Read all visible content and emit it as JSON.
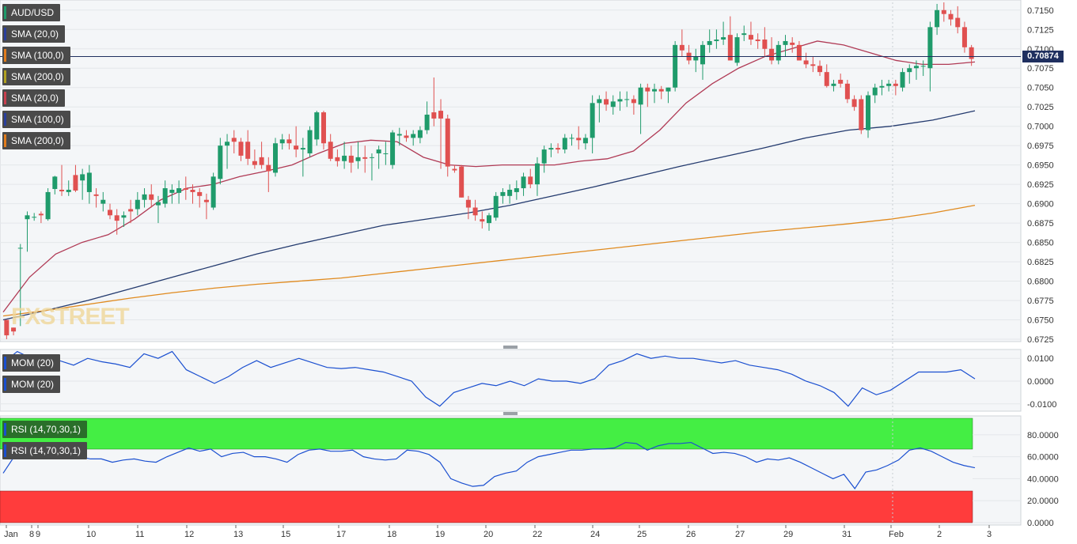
{
  "symbol": "AUD/USD",
  "last_price": "0.70874",
  "watermark": "FXSTREET",
  "overlay_labels": [
    "SMA (20,0)",
    "SMA (100,0)",
    "SMA (200,0)",
    "SMA (20,0)",
    "SMA (100,0)",
    "SMA (200,0)"
  ],
  "overlay_colors": [
    "#2a3f9c",
    "#e07b1c",
    "#b0a020",
    "#c8404f",
    "#2a3f9c",
    "#e07b1c"
  ],
  "mom_labels": [
    "MOM (20)",
    "MOM (20)"
  ],
  "rsi_labels": [
    "RSI (14,70,30,1)",
    "RSI (14,70,30,1)"
  ],
  "colors": {
    "bull": "#1f9b6b",
    "bear": "#e05050",
    "sma20": "#b03a55",
    "sma100": "#233a6e",
    "sma200": "#e08a1e",
    "indicator": "#1a4fd0",
    "overbought": "#44ee44",
    "oversold": "#ff3c3c"
  },
  "chart_data": [
    {
      "type": "candlestick",
      "title": "AUD/USD",
      "ylim": [
        0.6725,
        0.716
      ],
      "yticks": [
        "0.7150",
        "0.7125",
        "0.7100",
        "0.7075",
        "0.7050",
        "0.7025",
        "0.7000",
        "0.6975",
        "0.6950",
        "0.6925",
        "0.6900",
        "0.6875",
        "0.6850",
        "0.6825",
        "0.6800",
        "0.6775",
        "0.6750",
        "0.6725"
      ],
      "xticks": [
        "Jan",
        "8",
        "9",
        "10",
        "11",
        "12",
        "13",
        "15",
        "17",
        "18",
        "19",
        "20",
        "22",
        "24",
        "25",
        "26",
        "27",
        "29",
        "31",
        "Feb",
        "2",
        "3"
      ],
      "candles": [
        [
          0.675,
          0.6748,
          0.6725,
          0.673
        ],
        [
          0.674,
          0.674,
          0.673,
          0.6735
        ],
        [
          0.6842,
          0.6848,
          0.6742,
          0.6843
        ],
        [
          0.688,
          0.689,
          0.6838,
          0.6885
        ],
        [
          0.6882,
          0.6888,
          0.6878,
          0.6883
        ],
        [
          0.6887,
          0.689,
          0.6875,
          0.6885
        ],
        [
          0.688,
          0.692,
          0.6878,
          0.6915
        ],
        [
          0.6919,
          0.6936,
          0.6912,
          0.6935
        ],
        [
          0.6918,
          0.695,
          0.691,
          0.6916
        ],
        [
          0.6915,
          0.693,
          0.691,
          0.6918
        ],
        [
          0.6937,
          0.695,
          0.6915,
          0.6917
        ],
        [
          0.693,
          0.6945,
          0.6905,
          0.6938
        ],
        [
          0.6915,
          0.695,
          0.69,
          0.694
        ],
        [
          0.6912,
          0.692,
          0.6895,
          0.691
        ],
        [
          0.69,
          0.6915,
          0.689,
          0.6905
        ],
        [
          0.6892,
          0.69,
          0.688,
          0.6885
        ],
        [
          0.6885,
          0.6893,
          0.686,
          0.6878
        ],
        [
          0.6882,
          0.689,
          0.687,
          0.6885
        ],
        [
          0.6893,
          0.6905,
          0.6875,
          0.689
        ],
        [
          0.6893,
          0.6915,
          0.6885,
          0.6905
        ],
        [
          0.6905,
          0.692,
          0.6895,
          0.6912
        ],
        [
          0.6912,
          0.6925,
          0.6895,
          0.6905
        ],
        [
          0.6898,
          0.691,
          0.6875,
          0.6902
        ],
        [
          0.69,
          0.693,
          0.6895,
          0.692
        ],
        [
          0.6914,
          0.6925,
          0.69,
          0.6918
        ],
        [
          0.6914,
          0.693,
          0.69,
          0.692
        ],
        [
          0.692,
          0.6935,
          0.6905,
          0.6918
        ],
        [
          0.6918,
          0.6925,
          0.69,
          0.6915
        ],
        [
          0.6915,
          0.692,
          0.6895,
          0.691
        ],
        [
          0.6905,
          0.6913,
          0.688,
          0.6902
        ],
        [
          0.6895,
          0.694,
          0.6892,
          0.6935
        ],
        [
          0.6932,
          0.6985,
          0.6925,
          0.6975
        ],
        [
          0.6975,
          0.699,
          0.6945,
          0.698
        ],
        [
          0.6985,
          0.6995,
          0.6965,
          0.698
        ],
        [
          0.698,
          0.6985,
          0.6955,
          0.6962
        ],
        [
          0.698,
          0.6995,
          0.695,
          0.6958
        ],
        [
          0.6955,
          0.697,
          0.6945,
          0.695
        ],
        [
          0.696,
          0.698,
          0.6945,
          0.695
        ],
        [
          0.695,
          0.696,
          0.6915,
          0.6942
        ],
        [
          0.694,
          0.6985,
          0.6935,
          0.6978
        ],
        [
          0.6978,
          0.699,
          0.697,
          0.6983
        ],
        [
          0.6983,
          0.699,
          0.697,
          0.6978
        ],
        [
          0.6975,
          0.7,
          0.696,
          0.697
        ],
        [
          0.697,
          0.6985,
          0.6935,
          0.6972
        ],
        [
          0.6965,
          0.7,
          0.696,
          0.6995
        ],
        [
          0.6983,
          0.702,
          0.6975,
          0.7018
        ],
        [
          0.7018,
          0.702,
          0.697,
          0.6978
        ],
        [
          0.698,
          0.699,
          0.6955,
          0.6958
        ],
        [
          0.696,
          0.697,
          0.6948,
          0.6955
        ],
        [
          0.6955,
          0.698,
          0.6945,
          0.6962
        ],
        [
          0.6962,
          0.6975,
          0.694,
          0.6953
        ],
        [
          0.6955,
          0.698,
          0.6945,
          0.696
        ],
        [
          0.696,
          0.6975,
          0.694,
          0.6958
        ],
        [
          0.696,
          0.6965,
          0.693,
          0.696
        ],
        [
          0.6965,
          0.6975,
          0.6945,
          0.697
        ],
        [
          0.6965,
          0.698,
          0.695,
          0.6965
        ],
        [
          0.695,
          0.6995,
          0.6945,
          0.6992
        ],
        [
          0.6988,
          0.6998,
          0.6975,
          0.699
        ],
        [
          0.6988,
          0.6995,
          0.698,
          0.6985
        ],
        [
          0.6985,
          0.6995,
          0.6975,
          0.699
        ],
        [
          0.6985,
          0.7,
          0.6978,
          0.6995
        ],
        [
          0.6995,
          0.7032,
          0.699,
          0.7015
        ],
        [
          0.7018,
          0.7063,
          0.7,
          0.701
        ],
        [
          0.702,
          0.7035,
          0.6945,
          0.701
        ],
        [
          0.701,
          0.7015,
          0.6935,
          0.6948
        ],
        [
          0.6945,
          0.695,
          0.694,
          0.6943
        ],
        [
          0.6948,
          0.695,
          0.6908,
          0.6908
        ],
        [
          0.6905,
          0.691,
          0.688,
          0.6895
        ],
        [
          0.6895,
          0.6905,
          0.6878,
          0.6885
        ],
        [
          0.688,
          0.689,
          0.6868,
          0.6877
        ],
        [
          0.6875,
          0.6888,
          0.6865,
          0.6885
        ],
        [
          0.6882,
          0.6915,
          0.6878,
          0.691
        ],
        [
          0.691,
          0.692,
          0.69,
          0.6915
        ],
        [
          0.691,
          0.6925,
          0.69,
          0.6918
        ],
        [
          0.6915,
          0.693,
          0.6905,
          0.692
        ],
        [
          0.692,
          0.694,
          0.691,
          0.6935
        ],
        [
          0.6935,
          0.6945,
          0.692,
          0.6925
        ],
        [
          0.6925,
          0.696,
          0.691,
          0.6952
        ],
        [
          0.6952,
          0.6975,
          0.694,
          0.697
        ],
        [
          0.697,
          0.6978,
          0.696,
          0.6972
        ],
        [
          0.6972,
          0.6978,
          0.6965,
          0.697
        ],
        [
          0.697,
          0.699,
          0.6965,
          0.6985
        ],
        [
          0.6985,
          0.699,
          0.6975,
          0.6985
        ],
        [
          0.6985,
          0.7,
          0.697,
          0.6982
        ],
        [
          0.6978,
          0.699,
          0.697,
          0.6985
        ],
        [
          0.6985,
          0.704,
          0.6965,
          0.703
        ],
        [
          0.703,
          0.704,
          0.7005,
          0.7035
        ],
        [
          0.7035,
          0.7045,
          0.702,
          0.7028
        ],
        [
          0.7025,
          0.704,
          0.7015,
          0.7032
        ],
        [
          0.7032,
          0.7045,
          0.702,
          0.7035
        ],
        [
          0.7035,
          0.7045,
          0.7025,
          0.7035
        ],
        [
          0.7035,
          0.704,
          0.7015,
          0.703
        ],
        [
          0.7028,
          0.7055,
          0.699,
          0.705
        ],
        [
          0.705,
          0.7055,
          0.7025,
          0.7045
        ],
        [
          0.7045,
          0.7055,
          0.703,
          0.7048
        ],
        [
          0.7048,
          0.7052,
          0.7035,
          0.7045
        ],
        [
          0.7045,
          0.705,
          0.703,
          0.705
        ],
        [
          0.705,
          0.711,
          0.7045,
          0.7105
        ],
        [
          0.7105,
          0.7125,
          0.709,
          0.7098
        ],
        [
          0.7095,
          0.7105,
          0.708,
          0.7085
        ],
        [
          0.7085,
          0.71,
          0.707,
          0.709
        ],
        [
          0.708,
          0.711,
          0.706,
          0.7105
        ],
        [
          0.7105,
          0.7125,
          0.7095,
          0.711
        ],
        [
          0.711,
          0.7125,
          0.71,
          0.7112
        ],
        [
          0.7112,
          0.7135,
          0.7105,
          0.7115
        ],
        [
          0.7118,
          0.7142,
          0.7085,
          0.7085
        ],
        [
          0.7082,
          0.712,
          0.7078,
          0.7115
        ],
        [
          0.7118,
          0.713,
          0.711,
          0.712
        ],
        [
          0.7118,
          0.7135,
          0.7105,
          0.7112
        ],
        [
          0.7112,
          0.712,
          0.71,
          0.711
        ],
        [
          0.7112,
          0.7128,
          0.709,
          0.71
        ],
        [
          0.71,
          0.7115,
          0.708,
          0.7085
        ],
        [
          0.7085,
          0.711,
          0.708,
          0.7105
        ],
        [
          0.7105,
          0.7118,
          0.709,
          0.711
        ],
        [
          0.7108,
          0.7115,
          0.7095,
          0.7105
        ],
        [
          0.7105,
          0.711,
          0.7085,
          0.7085
        ],
        [
          0.7085,
          0.7095,
          0.7075,
          0.708
        ],
        [
          0.708,
          0.709,
          0.707,
          0.7078
        ],
        [
          0.7078,
          0.7085,
          0.7065,
          0.707
        ],
        [
          0.707,
          0.708,
          0.705,
          0.7052
        ],
        [
          0.7052,
          0.706,
          0.7045,
          0.7055
        ],
        [
          0.706,
          0.7068,
          0.705,
          0.7055
        ],
        [
          0.7055,
          0.706,
          0.703,
          0.7035
        ],
        [
          0.7035,
          0.704,
          0.702,
          0.7025
        ],
        [
          0.7035,
          0.704,
          0.699,
          0.6995
        ],
        [
          0.6995,
          0.7045,
          0.6985,
          0.704
        ],
        [
          0.704,
          0.7055,
          0.703,
          0.705
        ],
        [
          0.705,
          0.706,
          0.704,
          0.7052
        ],
        [
          0.7052,
          0.706,
          0.7045,
          0.7055
        ],
        [
          0.7055,
          0.706,
          0.704,
          0.7052
        ],
        [
          0.705,
          0.7075,
          0.7045,
          0.707
        ],
        [
          0.707,
          0.708,
          0.7055,
          0.7075
        ],
        [
          0.7075,
          0.7085,
          0.706,
          0.7078
        ],
        [
          0.7078,
          0.7085,
          0.7065,
          0.7078
        ],
        [
          0.7075,
          0.7135,
          0.7045,
          0.7128
        ],
        [
          0.7128,
          0.7158,
          0.7118,
          0.715
        ],
        [
          0.715,
          0.716,
          0.7135,
          0.7145
        ],
        [
          0.7145,
          0.715,
          0.713,
          0.7138
        ],
        [
          0.714,
          0.7155,
          0.712,
          0.7128
        ],
        [
          0.7128,
          0.7135,
          0.7095,
          0.7102
        ],
        [
          0.7102,
          0.7105,
          0.7078,
          0.7087
        ]
      ],
      "series": [
        {
          "name": "SMA (20,0)",
          "values": [
            0.676,
            0.6805,
            0.6835,
            0.685,
            0.686,
            0.688,
            0.6905,
            0.692,
            0.6925,
            0.6935,
            0.6942,
            0.695,
            0.6965,
            0.6978,
            0.6982,
            0.698,
            0.696,
            0.695,
            0.6948,
            0.695,
            0.695,
            0.695,
            0.6955,
            0.6958,
            0.6968,
            0.6995,
            0.703,
            0.7055,
            0.7075,
            0.709,
            0.71,
            0.711,
            0.7105,
            0.7095,
            0.7085,
            0.708,
            0.708,
            0.7083
          ]
        },
        {
          "name": "SMA (100,0)",
          "values": [
            0.675,
            0.6762,
            0.6775,
            0.679,
            0.6805,
            0.682,
            0.6835,
            0.6848,
            0.686,
            0.6872,
            0.688,
            0.6888,
            0.6898,
            0.691,
            0.6922,
            0.6935,
            0.6948,
            0.696,
            0.6972,
            0.6985,
            0.6995,
            0.7,
            0.7008,
            0.702
          ]
        },
        {
          "name": "SMA (200,0)",
          "values": [
            0.6755,
            0.6762,
            0.677,
            0.6778,
            0.6785,
            0.6791,
            0.6796,
            0.68,
            0.6804,
            0.681,
            0.6816,
            0.6822,
            0.6828,
            0.6834,
            0.684,
            0.6846,
            0.6852,
            0.6858,
            0.6864,
            0.6869,
            0.6874,
            0.688,
            0.6888,
            0.6898
          ]
        }
      ]
    },
    {
      "type": "line",
      "title": "MOM (20)",
      "ylim": [
        -0.0125,
        0.0125
      ],
      "yticks": [
        "0.0100",
        "0.0000",
        "-0.0100"
      ],
      "series": [
        {
          "name": "MOM (20)",
          "values": [
            0.008,
            0.013,
            0.01,
            0.008,
            0.009,
            0.007,
            0.01,
            0.0085,
            0.0075,
            0.006,
            0.012,
            0.01,
            0.013,
            0.005,
            0.002,
            -0.001,
            0.002,
            0.006,
            0.009,
            0.006,
            0.008,
            0.01,
            0.008,
            0.006,
            0.0055,
            0.006,
            0.005,
            0.004,
            0.002,
            0.0,
            -0.007,
            -0.011,
            -0.005,
            -0.003,
            -0.001,
            -0.002,
            0.0,
            -0.002,
            0.001,
            0.0,
            0.0,
            -0.001,
            0.001,
            0.007,
            0.009,
            0.012,
            0.01,
            0.011,
            0.01,
            0.01,
            0.009,
            0.008,
            0.009,
            0.007,
            0.006,
            0.005,
            0.003,
            0.0,
            -0.002,
            -0.005,
            -0.011,
            -0.003,
            -0.006,
            -0.004,
            0.0,
            0.004,
            0.004,
            0.004,
            0.005,
            0.001
          ]
        }
      ]
    },
    {
      "type": "line",
      "title": "RSI (14,70,30,1)",
      "ylim": [
        0,
        95
      ],
      "yticks": [
        "80.0000",
        "60.0000",
        "40.0000",
        "20.0000",
        "0.0000"
      ],
      "bands": {
        "overbought": 70,
        "oversold": 30
      },
      "series": [
        {
          "name": "RSI (14,70,30,1)",
          "values": [
            45,
            60,
            63,
            64,
            67,
            65,
            62,
            60,
            58,
            58,
            55,
            57,
            58,
            56,
            55,
            60,
            64,
            68,
            65,
            67,
            60,
            63,
            64,
            60,
            60,
            58,
            55,
            62,
            66,
            67,
            65,
            65,
            66,
            60,
            58,
            57,
            58,
            66,
            65,
            62,
            55,
            40,
            36,
            33,
            34,
            42,
            45,
            47,
            55,
            60,
            62,
            64,
            66,
            66,
            67,
            67,
            68,
            73,
            72,
            66,
            70,
            72,
            72,
            73,
            68,
            63,
            64,
            63,
            60,
            55,
            58,
            57,
            59,
            55,
            50,
            45,
            40,
            44,
            31,
            46,
            48,
            52,
            57,
            66,
            68,
            65,
            60,
            55,
            52,
            50
          ]
        }
      ]
    }
  ]
}
